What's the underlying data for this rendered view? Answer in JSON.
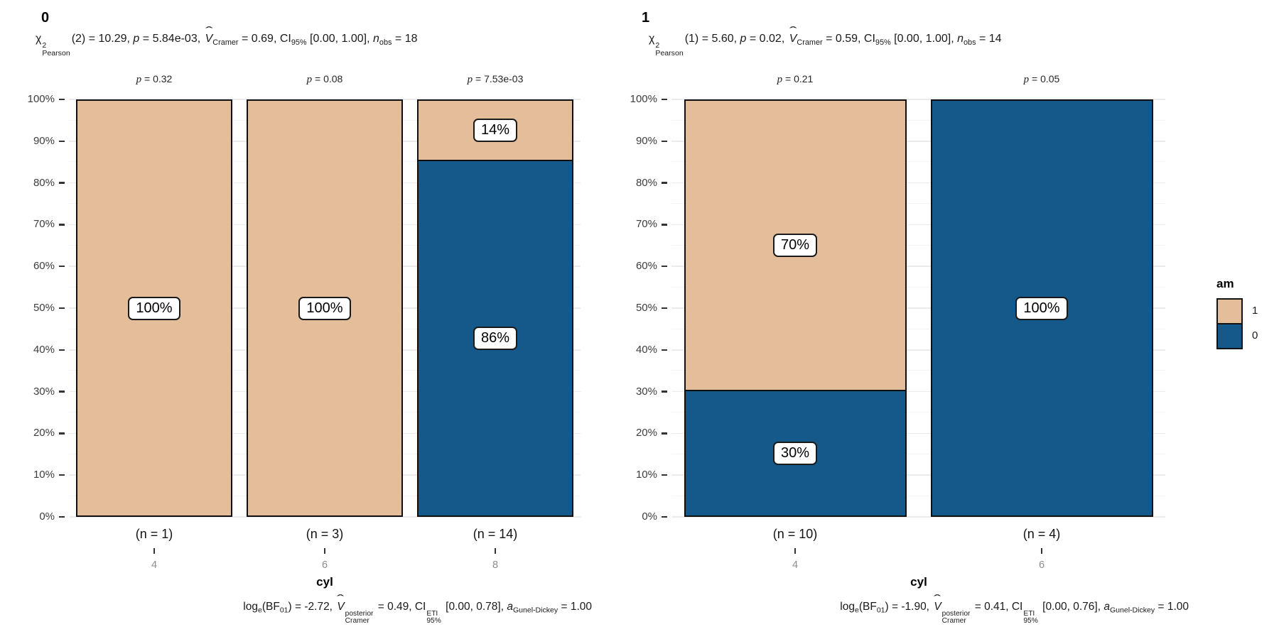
{
  "colors": {
    "am_1": "#e4bd9a",
    "am_0": "#15588a",
    "bar_border": "#0f0f0f",
    "grid_major": "#ebebeb",
    "grid_minor": "#f4f4f4",
    "axis_text": "#3d3d3d",
    "x_category_text": "#8c8c8c",
    "background": "#ffffff"
  },
  "legend": {
    "title": "am",
    "items": [
      {
        "label": "1",
        "series": "1"
      },
      {
        "label": "0",
        "series": "0"
      }
    ]
  },
  "panels": [
    {
      "title": "0",
      "xlabel": "cyl",
      "y_ticks": [
        "0%",
        "10%",
        "20%",
        "30%",
        "40%",
        "50%",
        "60%",
        "70%",
        "80%",
        "90%",
        "100%"
      ],
      "subtitle_segments": [
        {
          "t": "χ"
        },
        {
          "stack": [
            "2",
            "Pearson"
          ]
        },
        {
          "t": "(2) = 10.29, "
        },
        {
          "t": "p",
          "i": true
        },
        {
          "t": " = 5.84e-03, "
        },
        {
          "hat": "V"
        },
        {
          "t": "Cramer",
          "sub": true
        },
        {
          "t": " = 0.69, CI"
        },
        {
          "t": "95%",
          "sub": true
        },
        {
          "t": " [0.00, 1.00], "
        },
        {
          "t": "n",
          "i": true
        },
        {
          "t": "obs",
          "sub": true
        },
        {
          "t": " = 18"
        }
      ],
      "caption_segments": [
        {
          "t": "log"
        },
        {
          "t": "e",
          "sub": true
        },
        {
          "t": "(BF"
        },
        {
          "t": "01",
          "sub": true
        },
        {
          "t": ") = -2.72, "
        },
        {
          "hat": "V"
        },
        {
          "stack": [
            "posterior",
            "Cramer"
          ]
        },
        {
          "t": " = 0.49, CI"
        },
        {
          "stack": [
            "ETI",
            "95%"
          ]
        },
        {
          "t": " [0.00, 0.78], "
        },
        {
          "t": "a",
          "i": true
        },
        {
          "t": "Gunel-Dickey",
          "sub": true
        },
        {
          "t": " = 1.00"
        }
      ],
      "bars": [
        {
          "category": "4",
          "p_label": "p = 0.32",
          "n_label": "(n = 1)",
          "segments": [
            {
              "series": "1",
              "value": 100,
              "label": "100%"
            }
          ]
        },
        {
          "category": "6",
          "p_label": "p = 0.08",
          "n_label": "(n = 3)",
          "segments": [
            {
              "series": "1",
              "value": 100,
              "label": "100%"
            }
          ]
        },
        {
          "category": "8",
          "p_label": "p = 7.53e-03",
          "n_label": "(n = 14)",
          "segments": [
            {
              "series": "1",
              "value": 14.29,
              "label": "14%"
            },
            {
              "series": "0",
              "value": 85.71,
              "label": "86%"
            }
          ]
        }
      ]
    },
    {
      "title": "1",
      "xlabel": "cyl",
      "y_ticks": [
        "0%",
        "10%",
        "20%",
        "30%",
        "40%",
        "50%",
        "60%",
        "70%",
        "80%",
        "90%",
        "100%"
      ],
      "subtitle_segments": [
        {
          "t": "χ"
        },
        {
          "stack": [
            "2",
            "Pearson"
          ]
        },
        {
          "t": "(1) = 5.60, "
        },
        {
          "t": "p",
          "i": true
        },
        {
          "t": " = 0.02, "
        },
        {
          "hat": "V"
        },
        {
          "t": "Cramer",
          "sub": true
        },
        {
          "t": " = 0.59, CI"
        },
        {
          "t": "95%",
          "sub": true
        },
        {
          "t": " [0.00, 1.00], "
        },
        {
          "t": "n",
          "i": true
        },
        {
          "t": "obs",
          "sub": true
        },
        {
          "t": " = 14"
        }
      ],
      "caption_segments": [
        {
          "t": "log"
        },
        {
          "t": "e",
          "sub": true
        },
        {
          "t": "(BF"
        },
        {
          "t": "01",
          "sub": true
        },
        {
          "t": ") = -1.90, "
        },
        {
          "hat": "V"
        },
        {
          "stack": [
            "posterior",
            "Cramer"
          ]
        },
        {
          "t": " = 0.41, CI"
        },
        {
          "stack": [
            "ETI",
            "95%"
          ]
        },
        {
          "t": " [0.00, 0.76], "
        },
        {
          "t": "a",
          "i": true
        },
        {
          "t": "Gunel-Dickey",
          "sub": true
        },
        {
          "t": " = 1.00"
        }
      ],
      "bars": [
        {
          "category": "4",
          "p_label": "p = 0.21",
          "n_label": "(n = 10)",
          "segments": [
            {
              "series": "1",
              "value": 70,
              "label": "70%"
            },
            {
              "series": "0",
              "value": 30,
              "label": "30%"
            }
          ]
        },
        {
          "category": "6",
          "p_label": "p = 0.05",
          "n_label": "(n = 4)",
          "segments": [
            {
              "series": "0",
              "value": 100,
              "label": "100%"
            }
          ]
        }
      ]
    }
  ],
  "chart_data": [
    {
      "type": "bar",
      "stacked": true,
      "unit": "percent",
      "facet_title": "0",
      "subtitle_text": "χ²_Pearson(2) = 10.29, p = 5.84e-03, V̂_Cramer = 0.69, CI_95% [0.00, 1.00], n_obs = 18",
      "caption_text": "log_e(BF_01) = -2.72, V̂_Cramer^posterior = 0.49, CI_95%^ETI [0.00, 0.78], a_Gunel-Dickey = 1.00",
      "xlabel": "cyl",
      "ylabel": "",
      "categories": [
        "4",
        "6",
        "8"
      ],
      "series": [
        {
          "name": "1",
          "values": [
            100,
            100,
            14
          ]
        },
        {
          "name": "0",
          "values": [
            0,
            0,
            86
          ]
        }
      ],
      "bar_sample_sizes": [
        1,
        3,
        14
      ],
      "bar_p_values": [
        "0.32",
        "0.08",
        "7.53e-03"
      ],
      "ylim": [
        "0%",
        "100%"
      ],
      "y_tick_step": "10%",
      "grid": true,
      "legend_title": "am",
      "legend_position": "right"
    },
    {
      "type": "bar",
      "stacked": true,
      "unit": "percent",
      "facet_title": "1",
      "subtitle_text": "χ²_Pearson(1) = 5.60, p = 0.02, V̂_Cramer = 0.59, CI_95% [0.00, 1.00], n_obs = 14",
      "caption_text": "log_e(BF_01) = -1.90, V̂_Cramer^posterior = 0.41, CI_95%^ETI [0.00, 0.76], a_Gunel-Dickey = 1.00",
      "xlabel": "cyl",
      "ylabel": "",
      "categories": [
        "4",
        "6"
      ],
      "series": [
        {
          "name": "1",
          "values": [
            70,
            0
          ]
        },
        {
          "name": "0",
          "values": [
            30,
            100
          ]
        }
      ],
      "bar_sample_sizes": [
        10,
        4
      ],
      "bar_p_values": [
        "0.21",
        "0.05"
      ],
      "ylim": [
        "0%",
        "100%"
      ],
      "y_tick_step": "10%",
      "grid": true,
      "legend_title": "am",
      "legend_position": "right"
    }
  ]
}
